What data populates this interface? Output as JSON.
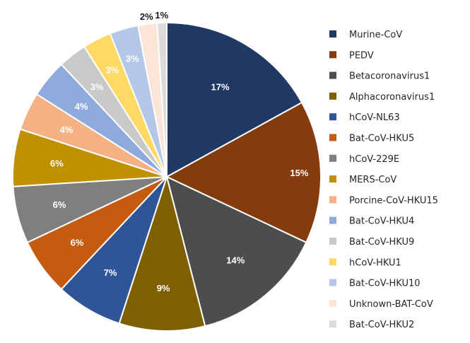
{
  "chart_data": {
    "type": "pie",
    "title": "",
    "legend_position": "right",
    "slices": [
      {
        "label": "Murine-CoV",
        "value": 17,
        "value_label": "17%",
        "color": "#1f3864"
      },
      {
        "label": "PEDV",
        "value": 15,
        "value_label": "15%",
        "color": "#843c0c"
      },
      {
        "label": "Betacoronavirus1",
        "value": 14,
        "value_label": "14%",
        "color": "#4d4d4d"
      },
      {
        "label": "Alphacoronavirus1",
        "value": 9,
        "value_label": "9%",
        "color": "#7f6000"
      },
      {
        "label": "hCoV-NL63",
        "value": 7,
        "value_label": "7%",
        "color": "#2f5597"
      },
      {
        "label": "Bat-CoV-HKU5",
        "value": 6,
        "value_label": "6%",
        "color": "#c55a11"
      },
      {
        "label": "hCoV-229E",
        "value": 6,
        "value_label": "6%",
        "color": "#7f7f7f"
      },
      {
        "label": "MERS-CoV",
        "value": 6,
        "value_label": "6%",
        "color": "#bf9000"
      },
      {
        "label": "Porcine-CoV-HKU15",
        "value": 4,
        "value_label": "4%",
        "color": "#f4b183"
      },
      {
        "label": "Bat-CoV-HKU4",
        "value": 4,
        "value_label": "4%",
        "color": "#8faadc"
      },
      {
        "label": "Bat-CoV-HKU9",
        "value": 3,
        "value_label": "3%",
        "color": "#c9c9c9"
      },
      {
        "label": "hCoV-HKU1",
        "value": 3,
        "value_label": "3%",
        "color": "#ffd966"
      },
      {
        "label": "Bat-CoV-HKU10",
        "value": 3,
        "value_label": "3%",
        "color": "#b4c7e7"
      },
      {
        "label": "Unknown-BAT-CoV",
        "value": 2,
        "value_label": "2%",
        "color": "#fbe5d6"
      },
      {
        "label": "Bat-CoV-HKU2",
        "value": 1,
        "value_label": "1%",
        "color": "#dbdbdb"
      }
    ]
  }
}
